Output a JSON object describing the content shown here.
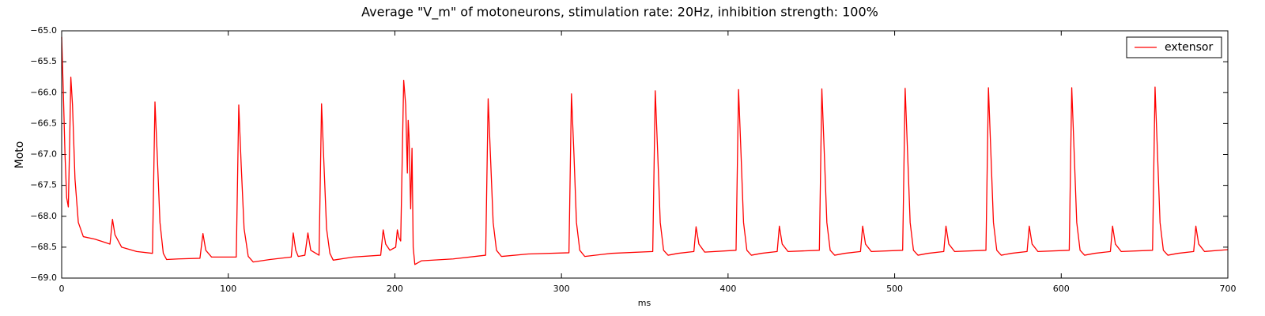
{
  "chart_data": {
    "type": "line",
    "title": "Average \"V_m\" of motoneurons, stimulation rate: 20Hz, inhibition strength: 100%",
    "xlabel": "ms",
    "ylabel": "Moto",
    "x": [
      0,
      1,
      2,
      3,
      4,
      4.8,
      5.5,
      6.5,
      8,
      10,
      13,
      20,
      29,
      30.5,
      32,
      36,
      45,
      54.5,
      56,
      57.5,
      59,
      61,
      63,
      70,
      83,
      84.8,
      86.5,
      90,
      104.8,
      106.3,
      107.8,
      109.5,
      112,
      115,
      125,
      137.8,
      139,
      140.5,
      142,
      146,
      147.8,
      149.5,
      154.5,
      156,
      157.5,
      159,
      161,
      163,
      175,
      191.5,
      193,
      194.5,
      197,
      200.5,
      201.5,
      202.5,
      203.5,
      205.3,
      206.5,
      207.5,
      208,
      208.5,
      209.5,
      210.3,
      211,
      212,
      216,
      235,
      254.5,
      256,
      257.5,
      259,
      261,
      264,
      280,
      304.5,
      306,
      307.5,
      309,
      311,
      314,
      330,
      354.8,
      356.3,
      357.8,
      359.3,
      361.3,
      364,
      370,
      379.5,
      380.8,
      382.5,
      386,
      404.8,
      406.3,
      407.8,
      409.3,
      411.3,
      414,
      420,
      429.5,
      430.8,
      432.5,
      436,
      454.8,
      456.3,
      457.8,
      459.3,
      461.3,
      464,
      470,
      479.5,
      480.8,
      482.5,
      486,
      504.8,
      506.3,
      507.8,
      509.3,
      511.3,
      514,
      520,
      529.5,
      530.8,
      532.5,
      536,
      554.8,
      556.3,
      557.8,
      559.3,
      561.3,
      564,
      570,
      579.5,
      580.8,
      582.5,
      586,
      604.8,
      606.3,
      607.8,
      609.3,
      611.3,
      614,
      620,
      629.5,
      630.8,
      632.5,
      636,
      654.8,
      656.3,
      657.8,
      659.3,
      661.3,
      664,
      670,
      679.5,
      680.8,
      682.5,
      686,
      700
    ],
    "series": [
      {
        "name": "extensor",
        "color": "#ff0000",
        "values": [
          -65.1,
          -66.0,
          -67.0,
          -67.7,
          -67.85,
          -66.8,
          -65.75,
          -66.2,
          -67.4,
          -68.1,
          -68.33,
          -68.37,
          -68.45,
          -68.05,
          -68.3,
          -68.5,
          -68.57,
          -68.6,
          -66.15,
          -67.1,
          -68.1,
          -68.6,
          -68.7,
          -68.69,
          -68.68,
          -68.28,
          -68.55,
          -68.66,
          -68.66,
          -66.2,
          -67.2,
          -68.2,
          -68.65,
          -68.74,
          -68.7,
          -68.66,
          -68.27,
          -68.55,
          -68.65,
          -68.63,
          -68.27,
          -68.55,
          -68.63,
          -66.18,
          -67.2,
          -68.2,
          -68.6,
          -68.71,
          -68.66,
          -68.63,
          -68.22,
          -68.45,
          -68.55,
          -68.5,
          -68.22,
          -68.35,
          -68.4,
          -65.8,
          -66.2,
          -67.3,
          -66.45,
          -66.7,
          -67.88,
          -66.9,
          -68.5,
          -68.78,
          -68.72,
          -68.69,
          -68.63,
          -66.1,
          -67.1,
          -68.1,
          -68.55,
          -68.65,
          -68.61,
          -68.59,
          -66.02,
          -67.0,
          -68.1,
          -68.55,
          -68.65,
          -68.6,
          -68.57,
          -65.97,
          -67.0,
          -68.1,
          -68.55,
          -68.63,
          -68.6,
          -68.57,
          -68.17,
          -68.45,
          -68.58,
          -68.55,
          -65.95,
          -67.0,
          -68.1,
          -68.55,
          -68.63,
          -68.6,
          -68.57,
          -68.16,
          -68.45,
          -68.57,
          -68.55,
          -65.94,
          -67.0,
          -68.1,
          -68.55,
          -68.63,
          -68.6,
          -68.57,
          -68.16,
          -68.45,
          -68.57,
          -68.55,
          -65.93,
          -67.0,
          -68.1,
          -68.55,
          -68.63,
          -68.6,
          -68.57,
          -68.16,
          -68.45,
          -68.57,
          -68.55,
          -65.92,
          -67.0,
          -68.1,
          -68.55,
          -68.63,
          -68.6,
          -68.57,
          -68.16,
          -68.45,
          -68.57,
          -68.55,
          -65.92,
          -67.0,
          -68.1,
          -68.55,
          -68.63,
          -68.6,
          -68.57,
          -68.16,
          -68.45,
          -68.57,
          -68.55,
          -65.91,
          -67.0,
          -68.1,
          -68.55,
          -68.63,
          -68.6,
          -68.57,
          -68.16,
          -68.45,
          -68.57,
          -68.54
        ]
      }
    ],
    "xlim": [
      0,
      700
    ],
    "xticks": [
      0,
      100,
      200,
      300,
      400,
      500,
      600,
      700
    ],
    "ylim": [
      -69,
      -65
    ],
    "yticks": [
      {
        "value": -69,
        "label": "−69.0"
      },
      {
        "value": -68.5,
        "label": "−68.5"
      },
      {
        "value": -68,
        "label": "−68.0"
      },
      {
        "value": -67.5,
        "label": "−67.5"
      },
      {
        "value": -67,
        "label": "−67.0"
      },
      {
        "value": -66.5,
        "label": "−66.5"
      },
      {
        "value": -66,
        "label": "−66.0"
      },
      {
        "value": -65.5,
        "label": "−65.5"
      },
      {
        "value": -65,
        "label": "−65.0"
      }
    ],
    "grid": false,
    "legend": "upper right"
  }
}
